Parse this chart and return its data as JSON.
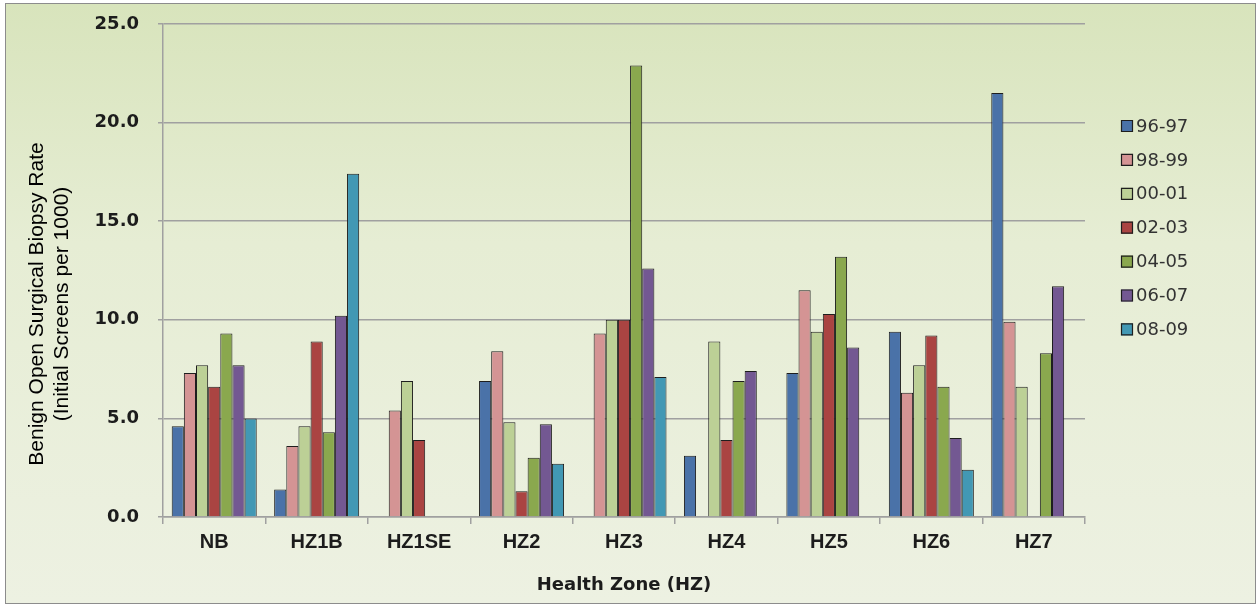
{
  "chart_data": {
    "type": "bar",
    "xlabel": "Health Zone (HZ)",
    "ylabel": "Benign Open Surgical Biopsy Rate\n(Initial Screens per 1000)",
    "categories": [
      "NB",
      "HZ1B",
      "HZ1SE",
      "HZ2",
      "HZ3",
      "HZ4",
      "HZ5",
      "HZ6",
      "HZ7"
    ],
    "series": [
      {
        "name": "96-97",
        "color": "#4a72a8",
        "values": [
          4.6,
          1.4,
          null,
          6.9,
          null,
          3.1,
          7.3,
          9.4,
          21.5
        ]
      },
      {
        "name": "98-99",
        "color": "#d49494",
        "values": [
          7.3,
          3.6,
          5.4,
          8.4,
          9.3,
          null,
          11.5,
          6.3,
          9.9
        ]
      },
      {
        "name": "00-01",
        "color": "#bcd096",
        "values": [
          7.7,
          4.6,
          6.9,
          4.8,
          10.0,
          8.9,
          9.4,
          7.7,
          6.6
        ]
      },
      {
        "name": "02-03",
        "color": "#aa4442",
        "values": [
          6.6,
          8.9,
          3.9,
          1.3,
          10.0,
          3.9,
          10.3,
          9.2,
          null
        ]
      },
      {
        "name": "04-05",
        "color": "#8aa84e",
        "values": [
          9.3,
          4.3,
          null,
          3.0,
          22.9,
          6.9,
          13.2,
          6.6,
          8.3
        ]
      },
      {
        "name": "06-07",
        "color": "#735892",
        "values": [
          7.7,
          10.2,
          null,
          4.7,
          12.6,
          7.4,
          8.6,
          4.0,
          11.7
        ]
      },
      {
        "name": "08-09",
        "color": "#4298b4",
        "values": [
          5.0,
          17.4,
          null,
          2.7,
          7.1,
          null,
          null,
          2.4,
          null
        ]
      }
    ],
    "ylim": [
      0,
      25
    ],
    "yticks": [
      {
        "value": 0,
        "label": "0.0"
      },
      {
        "value": 5,
        "label": "5.0"
      },
      {
        "value": 10,
        "label": "10.0"
      },
      {
        "value": 15,
        "label": "15.0"
      },
      {
        "value": 20,
        "label": "20.0"
      },
      {
        "value": 25,
        "label": "25.0"
      }
    ],
    "grid": "y",
    "legend": "right"
  }
}
